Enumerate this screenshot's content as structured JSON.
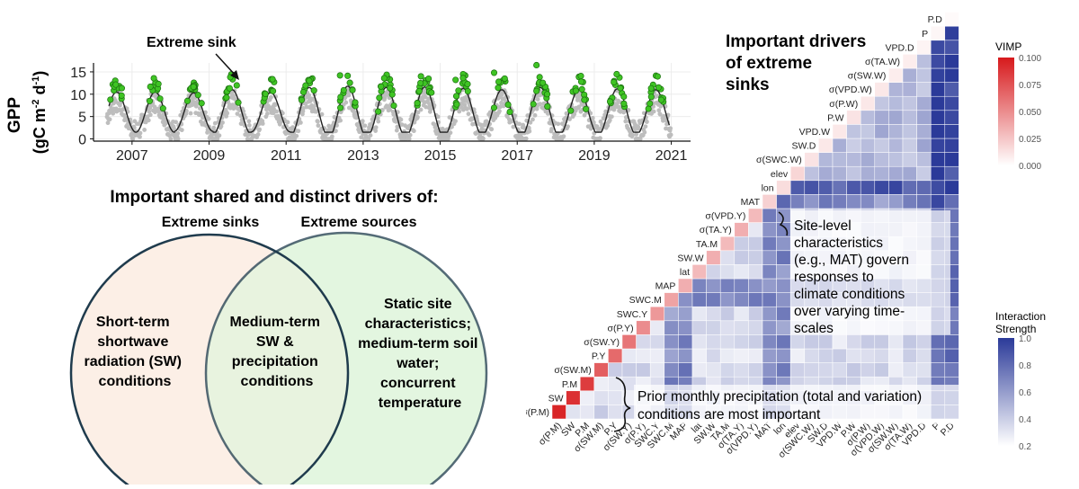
{
  "timeseries": {
    "ylabel_line1": "GPP",
    "ylabel_line2_prefix": "(gC m",
    "ylabel_sup1": "-2",
    "ylabel_mid": " d",
    "ylabel_sup2": "-1",
    "ylabel_suffix": ")",
    "annotation": "Extreme sink",
    "colors": {
      "points": "#bdbdbd",
      "extreme": "#3fc424",
      "extreme_edge": "#1b6e10",
      "curve": "#222222"
    }
  },
  "venn": {
    "title": "Important shared and distinct drivers of:",
    "left_header": "Extreme sinks",
    "right_header": "Extreme sources",
    "left_text": [
      "Short-term",
      "shortwave",
      "radiation (SW)",
      "conditions"
    ],
    "center_text": [
      "Medium-term",
      "SW &",
      "precipitation",
      "conditions"
    ],
    "right_text": [
      "Static site",
      "characteristics;",
      "medium-term soil",
      "water;",
      "concurrent",
      "temperature"
    ],
    "colors": {
      "left_fill": "#fcefe6",
      "right_fill": "#e3f6e0",
      "overlap_fill": "#e8f3df",
      "stroke": "#1f3b4d"
    }
  },
  "heatmap": {
    "title": [
      "Important drivers",
      "of extreme",
      "sinks"
    ],
    "callout1": [
      "Site-level",
      "characteristics",
      "(e.g., MAT) govern",
      "responses to",
      "climate conditions",
      "over varying time-",
      "scales"
    ],
    "callout2": [
      "Prior monthly precipitation (total and variation)",
      "conditions are most important"
    ],
    "legend_vimp": {
      "title": "VIMP",
      "ticks": [
        "0.100",
        "0.075",
        "0.050",
        "0.025",
        "0.000"
      ]
    },
    "legend_interaction": {
      "title": [
        "Interaction",
        "Strength"
      ],
      "ticks": [
        "1.0",
        "0.8",
        "0.6",
        "0.4",
        "0.2"
      ]
    },
    "colors": {
      "vimp_high": "#d7191c",
      "vimp_low": "#ffffff",
      "int_high": "#2b3a99",
      "int_low": "#ffffff"
    }
  },
  "chart_data": [
    {
      "type": "scatter",
      "title": "",
      "xlabel": "",
      "ylabel": "GPP (gC m-2 d-1)",
      "x_ticks": [
        "2007",
        "2009",
        "2011",
        "2013",
        "2015",
        "2017",
        "2019",
        "2021"
      ],
      "y_ticks": [
        0,
        5,
        10,
        15
      ],
      "xlim": [
        2006.0,
        2021.5
      ],
      "ylim": [
        -0.5,
        17
      ],
      "grid": true,
      "series": [
        {
          "description": "daily GPP (grey), seasonal cycle amplitude ~12 peaking mid-year"
        },
        {
          "peaks": [
            {
              "year": 2006.6,
              "peak": 10.5
            },
            {
              "year": 2007.6,
              "peak": 10.5
            },
            {
              "year": 2008.6,
              "peak": 10.3
            },
            {
              "year": 2009.6,
              "peak": 11.0
            },
            {
              "year": 2010.6,
              "peak": 10.4
            },
            {
              "year": 2011.6,
              "peak": 11.5
            },
            {
              "year": 2012.6,
              "peak": 11.8
            },
            {
              "year": 2013.6,
              "peak": 11.5
            },
            {
              "year": 2014.6,
              "peak": 11.6
            },
            {
              "year": 2015.6,
              "peak": 11.3
            },
            {
              "year": 2016.6,
              "peak": 11.0
            },
            {
              "year": 2017.6,
              "peak": 11.5
            },
            {
              "year": 2018.6,
              "peak": 11.0
            },
            {
              "year": 2019.6,
              "peak": 11.2
            },
            {
              "year": 2020.6,
              "peak": 11.0
            }
          ]
        }
      ],
      "extreme_sink_max": [
        {
          "year": 2009.55,
          "value": 13.8
        },
        {
          "year": 2012.4,
          "value": 14.2
        },
        {
          "year": 2014.5,
          "value": 14.0
        },
        {
          "year": 2016.4,
          "value": 14.8
        },
        {
          "year": 2017.5,
          "value": 16.5
        },
        {
          "year": 2015.4,
          "value": 13.2
        }
      ]
    },
    {
      "type": "heatmap",
      "title": "Important drivers of extreme sinks",
      "variables": [
        "σ(P.M)",
        "SW",
        "P.M",
        "σ(SW.M)",
        "P.Y",
        "σ(SW.Y)",
        "σ(P.Y)",
        "SWC.Y",
        "SWC.M",
        "MAP",
        "lat",
        "SW.W",
        "TA.M",
        "σ(TA.Y)",
        "σ(VPD.Y)",
        "MAT",
        "lon",
        "elev",
        "σ(SWC.W)",
        "SW.D",
        "VPD.W",
        "P.W",
        "σ(P.W)",
        "σ(VPD.W)",
        "σ(SW.W)",
        "σ(TA.W)",
        "VPD.D",
        "P",
        "P.D"
      ],
      "vimp_diagonal": [
        0.095,
        0.09,
        0.085,
        0.07,
        0.065,
        0.06,
        0.05,
        0.045,
        0.04,
        0.035,
        0.03,
        0.035,
        0.03,
        0.035,
        0.03,
        0.02,
        0.015,
        0.018,
        0.012,
        0.01,
        0.01,
        0.012,
        0.01,
        0.01,
        0.008,
        0.008,
        0.005,
        0.004,
        0.002
      ],
      "strong_rows": [
        "MAT",
        "lon",
        "P",
        "SWC.M",
        "MAP",
        "P.D"
      ],
      "interaction_range": [
        0.2,
        1.0
      ],
      "vimp_range": [
        0.0,
        0.1
      ]
    }
  ]
}
